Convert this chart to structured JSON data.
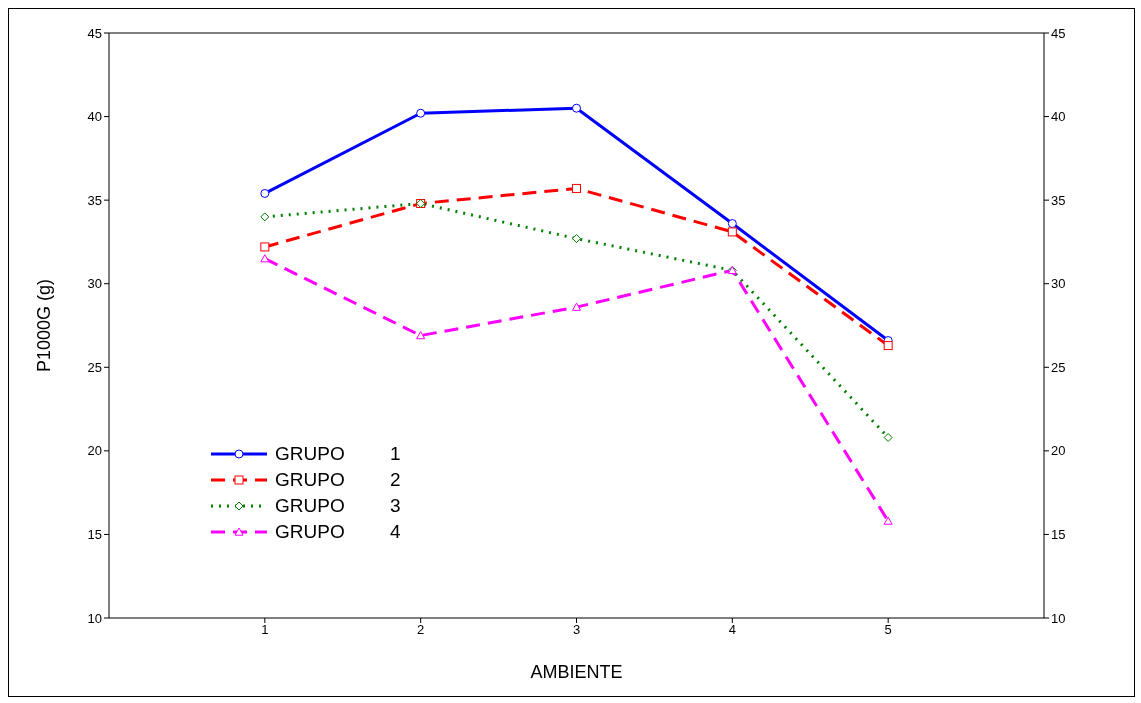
{
  "chart_data": {
    "type": "line",
    "xlabel": "AMBIENTE",
    "ylabel": "P1000G (g)",
    "x": [
      1,
      2,
      3,
      4,
      5
    ],
    "xlim": [
      0,
      6
    ],
    "xticks": [
      1,
      2,
      3,
      4,
      5
    ],
    "ylim": [
      10,
      45
    ],
    "yticks": [
      10,
      15,
      20,
      25,
      30,
      35,
      40,
      45
    ],
    "y2lim": [
      10,
      45
    ],
    "y2ticks": [
      10,
      15,
      20,
      25,
      30,
      35,
      40,
      45
    ],
    "legend": "bottom left",
    "series": [
      {
        "name": "GRUPO 1",
        "color": "#0000ff",
        "values": [
          35.4,
          40.2,
          40.5,
          33.6,
          26.6
        ],
        "marker": "circle",
        "line_style": "solid"
      },
      {
        "name": "GRUPO 2",
        "color": "#ff0000",
        "values": [
          32.2,
          34.8,
          35.7,
          33.1,
          26.3
        ],
        "marker": "square",
        "line_style": "dashed"
      },
      {
        "name": "GRUPO 3",
        "color": "#008000",
        "values": [
          34.0,
          34.8,
          32.7,
          30.8,
          20.8
        ],
        "marker": "diamond",
        "line_style": "dotted"
      },
      {
        "name": "GRUPO 4",
        "color": "#ff00ff",
        "values": [
          31.5,
          26.9,
          28.6,
          30.8,
          15.8
        ],
        "marker": "triangle",
        "line_style": "dashed"
      }
    ]
  }
}
